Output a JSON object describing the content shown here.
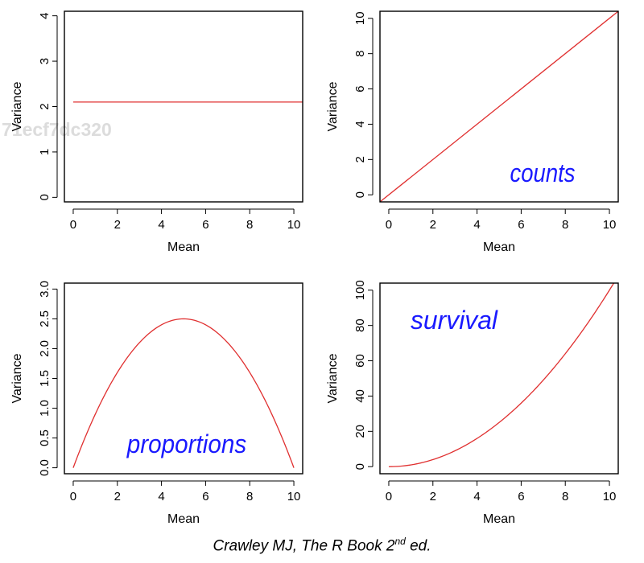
{
  "chart_data": [
    {
      "type": "line",
      "xlabel": "Mean",
      "ylabel": "Variance",
      "xlim": [
        -0.4,
        10.4
      ],
      "ylim": [
        -0.1,
        4.1
      ],
      "xticks": [
        0,
        2,
        4,
        6,
        8,
        10
      ],
      "yticks": [
        0,
        1,
        2,
        3,
        4
      ],
      "ytick_labels": [
        "0",
        "1",
        "2",
        "3",
        "4"
      ],
      "series": [
        {
          "function": "constant",
          "x": [
            0,
            10.4
          ],
          "y": [
            2.1,
            2.1
          ],
          "color": "#e03030"
        }
      ],
      "annotation": "",
      "watermark": "71ecf7dc320"
    },
    {
      "type": "line",
      "xlabel": "Mean",
      "ylabel": "Variance",
      "xlim": [
        -0.4,
        10.4
      ],
      "ylim": [
        -0.4,
        10.4
      ],
      "xticks": [
        0,
        2,
        4,
        6,
        8,
        10
      ],
      "yticks": [
        0,
        2,
        4,
        6,
        8,
        10
      ],
      "ytick_labels": [
        "0",
        "2",
        "4",
        "6",
        "8",
        "10"
      ],
      "series": [
        {
          "function": "linear",
          "x": [
            -0.4,
            10.4
          ],
          "y": [
            -0.4,
            10.4
          ],
          "color": "#e03030"
        }
      ],
      "annotation": "counts"
    },
    {
      "type": "line",
      "xlabel": "Mean",
      "ylabel": "Variance",
      "xlim": [
        -0.4,
        10.4
      ],
      "ylim": [
        -0.1,
        3.1
      ],
      "xticks": [
        0,
        2,
        4,
        6,
        8,
        10
      ],
      "yticks": [
        0,
        0.5,
        1,
        1.5,
        2,
        2.5,
        3
      ],
      "ytick_labels": [
        "0.0",
        "0.5",
        "1.0",
        "1.5",
        "2.0",
        "2.5",
        "3.0"
      ],
      "series": [
        {
          "function": "x*(1-x/10)",
          "x": [
            0,
            10
          ],
          "peak": [
            5,
            2.5
          ],
          "color": "#e03030"
        }
      ],
      "annotation": "proportions"
    },
    {
      "type": "line",
      "xlabel": "Mean",
      "ylabel": "Variance",
      "xlim": [
        -0.4,
        10.4
      ],
      "ylim": [
        -4,
        104
      ],
      "xticks": [
        0,
        2,
        4,
        6,
        8,
        10
      ],
      "yticks": [
        0,
        20,
        40,
        60,
        80,
        100
      ],
      "ytick_labels": [
        "0",
        "20",
        "40",
        "60",
        "80",
        "100"
      ],
      "series": [
        {
          "function": "x^2",
          "x": [
            0,
            10.4
          ],
          "y_at_10": 100,
          "color": "#e03030"
        }
      ],
      "annotation": "survival"
    }
  ],
  "caption": {
    "text": "Crawley MJ, The R Book 2",
    "superscript": "nd",
    "suffix": " ed."
  },
  "colors": {
    "curve": "#e03030",
    "annotation": "#1a1aff",
    "axis": "#000000"
  }
}
